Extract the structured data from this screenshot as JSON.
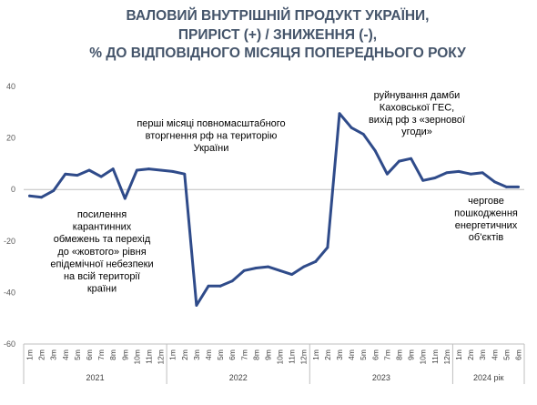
{
  "chart_data": {
    "type": "line",
    "title": [
      "ВАЛОВИЙ ВНУТРІШНІЙ ПРОДУКТ УКРАЇНИ,",
      "ПРИРІСТ (+) / ЗНИЖЕННЯ (-),",
      "%  ДО ВІДПОВІДНОГО МІСЯЦЯ ПОПЕРЕДНЬОГО РОКУ"
    ],
    "ylim": [
      -60,
      40
    ],
    "yticks": [
      40,
      20,
      0,
      -20,
      -40,
      -60
    ],
    "x": [
      "1m",
      "2m",
      "3m",
      "4m",
      "5m",
      "6m",
      "7m",
      "8m",
      "9m",
      "10m",
      "11m",
      "12m",
      "1m",
      "2m",
      "3m",
      "4m",
      "5m",
      "6m",
      "7m",
      "8m",
      "9m",
      "10m",
      "11m",
      "12m",
      "1m",
      "2m",
      "3m",
      "4m",
      "5m",
      "6m",
      "7m",
      "8m",
      "9m",
      "10m",
      "11m",
      "12m",
      "1m",
      "2m",
      "3m",
      "4m",
      "5m",
      "6m"
    ],
    "groups": [
      {
        "label": "2021",
        "start": 0,
        "end": 11
      },
      {
        "label": "2022",
        "start": 12,
        "end": 23
      },
      {
        "label": "2023",
        "start": 24,
        "end": 35
      },
      {
        "label": "2024 рік",
        "start": 36,
        "end": 41
      }
    ],
    "series": [
      {
        "color": "#2f4b8a",
        "values": [
          -2.5,
          -3,
          -0.5,
          6,
          5.5,
          7.5,
          5,
          8,
          -3.5,
          7.5,
          8,
          7.5,
          7,
          6,
          -45,
          -37.5,
          -37.5,
          -35.5,
          -31.5,
          -30.5,
          -30,
          -31.5,
          -33,
          -30,
          -28,
          -22.5,
          29.5,
          24,
          21.5,
          15,
          6,
          11,
          12,
          3.5,
          4.5,
          6.5,
          7,
          6,
          6.5,
          3,
          1,
          1
        ]
      }
    ],
    "annotations": [
      {
        "lines": [
          "посилення",
          "карантинних",
          "обмежень та перехід",
          "до «жовтого» рівня",
          "епідемічної небезпеки",
          "на всій території",
          "країни"
        ]
      },
      {
        "lines": [
          "перші місяці повномасштабного",
          "вторгнення рф на територію",
          "України"
        ]
      },
      {
        "lines": [
          "руйнування дамби",
          "Каховської ГЕС,",
          "вихід рф з «зернової",
          "угоди»"
        ]
      },
      {
        "lines": [
          "чергове",
          "пошкодження",
          "енергетичних",
          "об'єктів"
        ]
      }
    ]
  }
}
